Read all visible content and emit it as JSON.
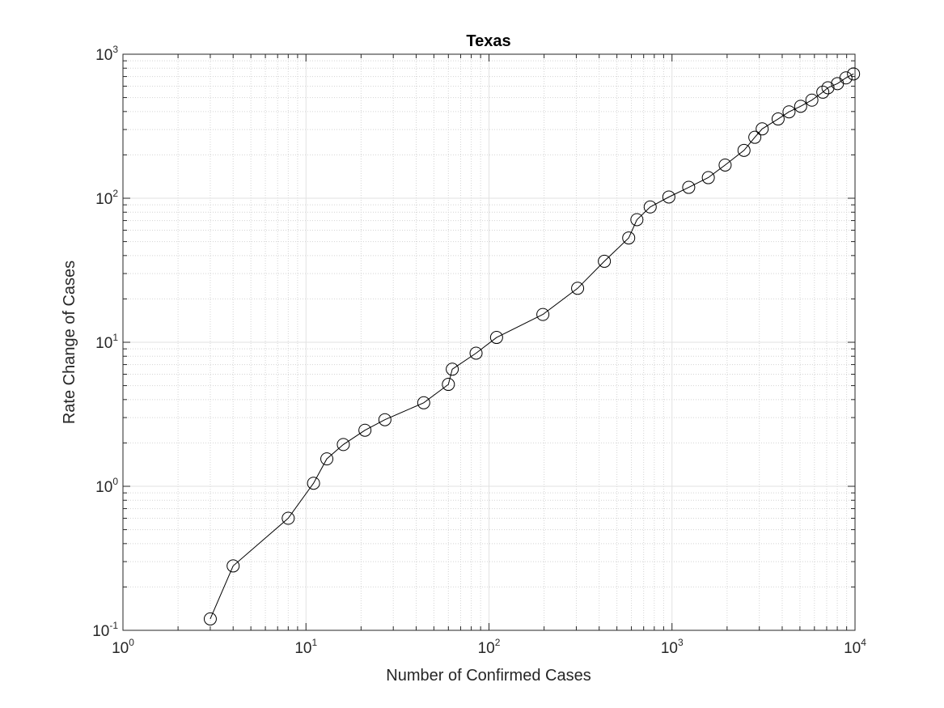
{
  "chart_data": {
    "type": "line",
    "title": "Texas",
    "xlabel": "Number of Confirmed Cases",
    "ylabel": "Rate Change of Cases",
    "xscale": "log",
    "yscale": "log",
    "xlim": [
      1,
      10000
    ],
    "ylim": [
      0.1,
      1000
    ],
    "grid": "on",
    "minor_grid": "on",
    "marker": "open-circle",
    "line_color": "#000000",
    "xticks": [
      {
        "base": "10",
        "exp": "0"
      },
      {
        "base": "10",
        "exp": "1"
      },
      {
        "base": "10",
        "exp": "2"
      },
      {
        "base": "10",
        "exp": "3"
      },
      {
        "base": "10",
        "exp": "4"
      }
    ],
    "yticks": [
      {
        "base": "10",
        "exp": "-1"
      },
      {
        "base": "10",
        "exp": "0"
      },
      {
        "base": "10",
        "exp": "1"
      },
      {
        "base": "10",
        "exp": "2"
      },
      {
        "base": "10",
        "exp": "3"
      }
    ],
    "x": [
      3,
      4,
      8,
      11,
      13,
      16,
      21,
      27,
      44,
      60,
      63,
      85,
      110,
      197,
      305,
      427,
      580,
      643,
      760,
      961,
      1234,
      1579,
      1951,
      2474,
      2835,
      3109,
      3800,
      4359,
      5047,
      5811,
      6669,
      7114,
      8016,
      8923,
      9816
    ],
    "y": [
      0.12,
      0.28,
      0.6,
      1.05,
      1.55,
      1.95,
      2.45,
      2.9,
      3.8,
      5.1,
      6.5,
      8.4,
      10.8,
      15.6,
      23.7,
      36.5,
      53,
      71,
      87,
      102,
      119,
      139,
      170,
      215,
      265,
      303,
      355,
      398,
      435,
      480,
      545,
      585,
      625,
      685,
      730
    ]
  }
}
